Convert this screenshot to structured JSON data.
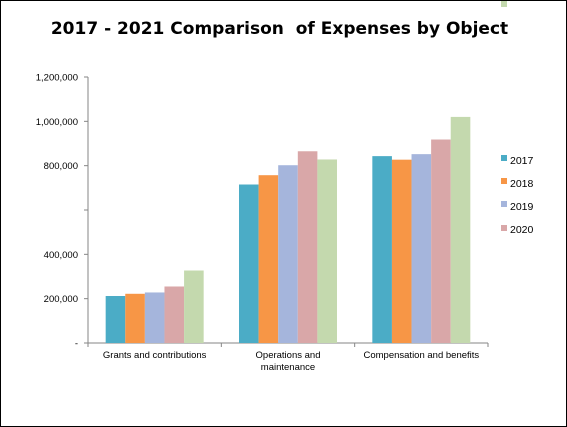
{
  "chart_data": {
    "type": "bar",
    "title": "2017 - 2021 Comparison  of Expenses by Object",
    "categories": [
      [
        "Grants and contributions"
      ],
      [
        "Operations and",
        "maintenance"
      ],
      [
        "Compensation and benefits"
      ]
    ],
    "series": [
      {
        "name": "2017",
        "color": "#4BACC6",
        "values": [
          212000,
          715000,
          843000
        ]
      },
      {
        "name": "2018",
        "color": "#F79646",
        "values": [
          222000,
          757000,
          827000
        ]
      },
      {
        "name": "2019",
        "color": "#A5B5DC",
        "values": [
          228000,
          802000,
          852000
        ]
      },
      {
        "name": "2020",
        "color": "#D9A7A8",
        "values": [
          255000,
          865000,
          918000
        ]
      },
      {
        "name": "",
        "color": "#C4D9AE",
        "values": [
          327000,
          828000,
          1020000
        ]
      }
    ],
    "legend_labels": [
      "2017",
      "2018",
      "2019",
      "2020"
    ],
    "ylim": [
      0,
      1200000
    ],
    "yticks": [
      0,
      200000,
      400000,
      600000,
      800000,
      1000000,
      1200000
    ],
    "ytick_labels": [
      "-",
      "200,000",
      "400,000",
      "",
      "800,000",
      "1,000,000",
      "1,200,000"
    ],
    "xlabel": "",
    "ylabel": "",
    "grid": false,
    "legend_position": "right"
  }
}
